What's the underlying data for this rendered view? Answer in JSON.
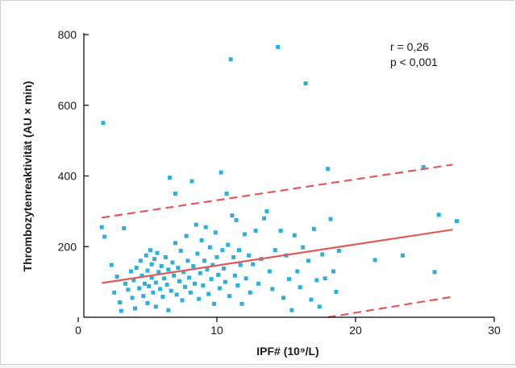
{
  "chart_data": {
    "type": "scatter",
    "xlabel": "IPF# (10⁹/L)",
    "ylabel": "Thrombozytenreaktivität (AU × min)",
    "xlim": [
      0,
      30
    ],
    "ylim": [
      0,
      800
    ],
    "x_ticks": [
      0,
      10,
      20,
      30
    ],
    "y_ticks": [
      200,
      400,
      600,
      800
    ],
    "annotations": [
      "r = 0,26",
      "p < 0,001"
    ],
    "grid": false,
    "point_color": "#29b0dd",
    "line_color": "#e05b57",
    "regression_line": {
      "x": [
        1.7,
        27.0
      ],
      "y": [
        97,
        248
      ]
    },
    "confidence_bands": [
      {
        "x": [
          1.7,
          27.0
        ],
        "y": [
          282,
          432
        ]
      },
      {
        "x": [
          18.0,
          27.0
        ],
        "y": [
          0,
          58
        ]
      }
    ],
    "points": [
      [
        1.8,
        550
      ],
      [
        1.7,
        255
      ],
      [
        1.9,
        228
      ],
      [
        2.4,
        148
      ],
      [
        2.6,
        70
      ],
      [
        2.8,
        115
      ],
      [
        3.0,
        42
      ],
      [
        3.1,
        18
      ],
      [
        3.3,
        252
      ],
      [
        3.4,
        95
      ],
      [
        3.6,
        78
      ],
      [
        3.8,
        130
      ],
      [
        3.9,
        55
      ],
      [
        4.0,
        105
      ],
      [
        4.1,
        25
      ],
      [
        4.2,
        140
      ],
      [
        4.4,
        82
      ],
      [
        4.5,
        160
      ],
      [
        4.6,
        118
      ],
      [
        4.7,
        60
      ],
      [
        4.8,
        95
      ],
      [
        4.9,
        175
      ],
      [
        5.0,
        132
      ],
      [
        5.0,
        40
      ],
      [
        5.1,
        88
      ],
      [
        5.2,
        190
      ],
      [
        5.3,
        150
      ],
      [
        5.3,
        112
      ],
      [
        5.4,
        70
      ],
      [
        5.5,
        165
      ],
      [
        5.6,
        98
      ],
      [
        5.6,
        30
      ],
      [
        5.7,
        182
      ],
      [
        5.8,
        128
      ],
      [
        5.9,
        80
      ],
      [
        6.0,
        145
      ],
      [
        6.1,
        58
      ],
      [
        6.2,
        110
      ],
      [
        6.3,
        170
      ],
      [
        6.4,
        92
      ],
      [
        6.5,
        135
      ],
      [
        6.5,
        20
      ],
      [
        6.6,
        395
      ],
      [
        6.7,
        75
      ],
      [
        6.8,
        155
      ],
      [
        6.9,
        118
      ],
      [
        7.0,
        350
      ],
      [
        7.0,
        210
      ],
      [
        7.1,
        64
      ],
      [
        7.2,
        140
      ],
      [
        7.3,
        102
      ],
      [
        7.4,
        188
      ],
      [
        7.5,
        48
      ],
      [
        7.6,
        128
      ],
      [
        7.7,
        86
      ],
      [
        7.8,
        230
      ],
      [
        7.9,
        160
      ],
      [
        8.0,
        112
      ],
      [
        8.1,
        70
      ],
      [
        8.2,
        385
      ],
      [
        8.3,
        145
      ],
      [
        8.4,
        95
      ],
      [
        8.5,
        262
      ],
      [
        8.6,
        180
      ],
      [
        8.7,
        52
      ],
      [
        8.8,
        125
      ],
      [
        8.9,
        218
      ],
      [
        9.0,
        90
      ],
      [
        9.1,
        160
      ],
      [
        9.2,
        255
      ],
      [
        9.3,
        135
      ],
      [
        9.4,
        66
      ],
      [
        9.5,
        198
      ],
      [
        9.6,
        108
      ],
      [
        9.7,
        148
      ],
      [
        9.8,
        38
      ],
      [
        9.9,
        240
      ],
      [
        10.0,
        170
      ],
      [
        10.1,
        120
      ],
      [
        10.2,
        82
      ],
      [
        10.3,
        410
      ],
      [
        10.4,
        190
      ],
      [
        10.5,
        138
      ],
      [
        10.6,
        100
      ],
      [
        10.7,
        350
      ],
      [
        10.8,
        205
      ],
      [
        10.9,
        60
      ],
      [
        11.0,
        730
      ],
      [
        11.1,
        288
      ],
      [
        11.2,
        170
      ],
      [
        11.3,
        118
      ],
      [
        11.4,
        275
      ],
      [
        11.5,
        90
      ],
      [
        11.6,
        190
      ],
      [
        11.7,
        148
      ],
      [
        11.8,
        38
      ],
      [
        12.0,
        235
      ],
      [
        12.1,
        110
      ],
      [
        12.3,
        175
      ],
      [
        12.4,
        70
      ],
      [
        12.6,
        150
      ],
      [
        12.8,
        245
      ],
      [
        13.0,
        95
      ],
      [
        13.2,
        165
      ],
      [
        13.4,
        280
      ],
      [
        13.6,
        300
      ],
      [
        13.8,
        130
      ],
      [
        14.0,
        80
      ],
      [
        14.2,
        190
      ],
      [
        14.4,
        765
      ],
      [
        14.6,
        245
      ],
      [
        14.8,
        55
      ],
      [
        15.0,
        175
      ],
      [
        15.2,
        108
      ],
      [
        15.4,
        20
      ],
      [
        15.6,
        232
      ],
      [
        15.8,
        130
      ],
      [
        16.0,
        85
      ],
      [
        16.2,
        198
      ],
      [
        16.4,
        662
      ],
      [
        16.6,
        160
      ],
      [
        16.8,
        50
      ],
      [
        17.0,
        250
      ],
      [
        17.2,
        105
      ],
      [
        17.4,
        30
      ],
      [
        17.6,
        178
      ],
      [
        17.8,
        110
      ],
      [
        18.0,
        420
      ],
      [
        18.2,
        278
      ],
      [
        18.4,
        130
      ],
      [
        18.6,
        72
      ],
      [
        18.8,
        188
      ],
      [
        21.4,
        162
      ],
      [
        23.4,
        175
      ],
      [
        24.9,
        425
      ],
      [
        25.7,
        128
      ],
      [
        26.0,
        290
      ],
      [
        27.3,
        272
      ]
    ]
  }
}
